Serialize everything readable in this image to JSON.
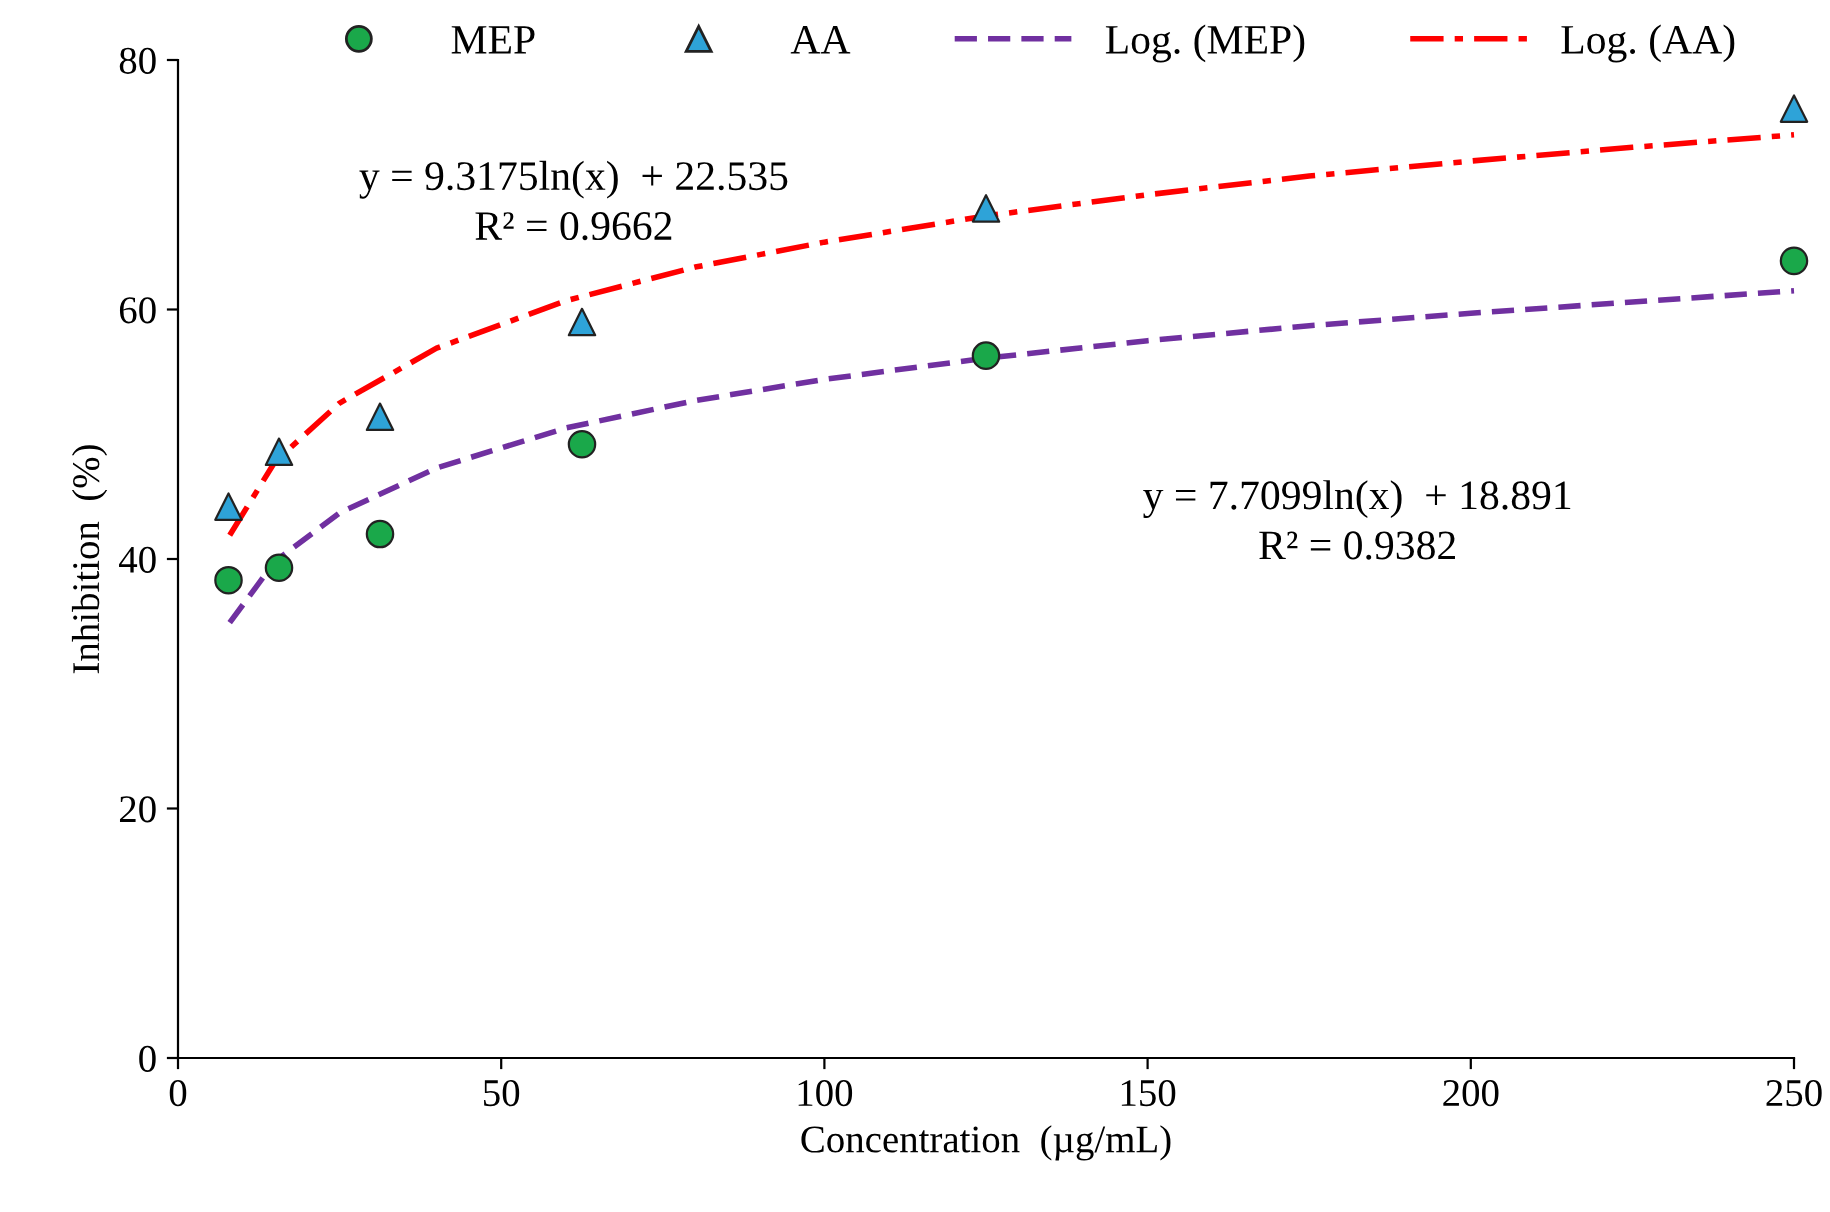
{
  "chart_data": {
    "type": "scatter",
    "xlabel": "Concentration  (µg/mL)",
    "ylabel": "Inhibition  (%)",
    "xlim": [
      0,
      250
    ],
    "xticks": [
      0,
      50,
      100,
      150,
      200,
      250
    ],
    "ylim": [
      0,
      80
    ],
    "yticks": [
      0,
      20,
      40,
      60,
      80
    ],
    "grid": false,
    "legend": "top",
    "series": [
      {
        "name": "MEP",
        "marker": "circle",
        "color": "#1aa84a",
        "x": [
          7.8125,
          15.625,
          31.25,
          62.5,
          125,
          250
        ],
        "values": [
          38.3,
          39.3,
          42.0,
          49.2,
          56.3,
          63.9
        ]
      },
      {
        "name": "AA",
        "marker": "triangle",
        "color": "#2ea3d8",
        "x": [
          7.8125,
          15.625,
          31.25,
          62.5,
          125,
          250
        ],
        "values": [
          44.2,
          48.6,
          51.4,
          59.0,
          68.1,
          76.1
        ]
      },
      {
        "name": "Log. (MEP)",
        "type": "line",
        "line_style": "dashed",
        "color": "#7030a0",
        "x": [
          8,
          15,
          25,
          40,
          60,
          80,
          100,
          125,
          150,
          175,
          200,
          225,
          250
        ],
        "values": [
          34.9,
          39.8,
          43.7,
          47.3,
          50.5,
          52.7,
          54.4,
          56.1,
          57.5,
          58.7,
          59.7,
          60.6,
          61.5
        ]
      },
      {
        "name": "Log. (AA)",
        "type": "line",
        "line_style": "dashdot",
        "color": "#ff0000",
        "x": [
          8,
          15,
          25,
          40,
          60,
          80,
          100,
          125,
          150,
          175,
          200,
          225,
          250
        ],
        "values": [
          41.9,
          47.8,
          52.5,
          56.9,
          60.7,
          63.4,
          65.4,
          67.5,
          69.2,
          70.7,
          71.9,
          73.0,
          74.0
        ]
      }
    ],
    "annotations": [
      "y = 9.3175ln(x)  + 22.535",
      "R² = 0.9662",
      "y = 7.7099ln(x)  + 18.891",
      "R² = 0.9382"
    ]
  }
}
